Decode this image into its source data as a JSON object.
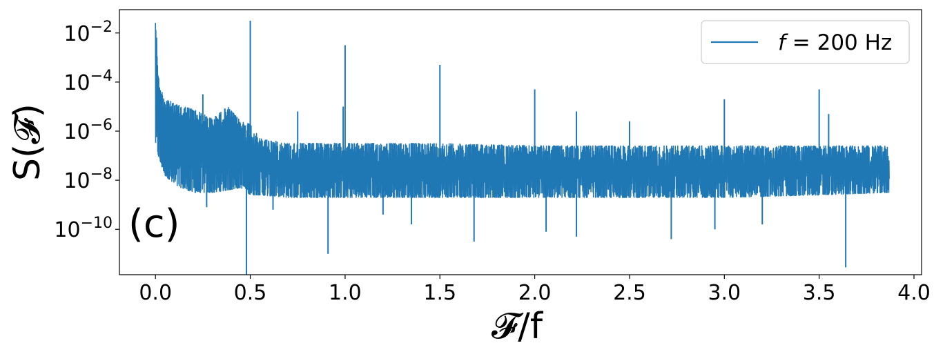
{
  "chart_data": {
    "type": "line",
    "panel_label": "(c)",
    "xlabel": "𝓕/f",
    "ylabel": "S(𝓕)",
    "xlim": [
      -0.19,
      4.04
    ],
    "ylim_log10": [
      -11.85,
      -1.05
    ],
    "y_scale": "log",
    "grid": false,
    "legend_position": "top-right",
    "x_ticks": [
      0.0,
      0.5,
      1.0,
      1.5,
      2.0,
      2.5,
      3.0,
      3.5,
      4.0
    ],
    "x_tick_labels": [
      "0.0",
      "0.5",
      "1.0",
      "1.5",
      "2.0",
      "2.5",
      "3.0",
      "3.5",
      "4.0"
    ],
    "y_ticks_log10": [
      -2,
      -4,
      -6,
      -8,
      -10
    ],
    "y_tick_labels": [
      {
        "base": "10",
        "exp": "−2"
      },
      {
        "base": "10",
        "exp": "−4"
      },
      {
        "base": "10",
        "exp": "−6"
      },
      {
        "base": "10",
        "exp": "−8"
      },
      {
        "base": "10",
        "exp": "−10"
      }
    ],
    "series": [
      {
        "name_italic": "f",
        "name_rest": " = 200 Hz",
        "color": "#1f77b4",
        "x_range": [
          0.0,
          3.87
        ],
        "envelope_log10": {
          "x": [
            0.0,
            0.02,
            0.05,
            0.1,
            0.2,
            0.3,
            0.38,
            0.45,
            0.5,
            0.55,
            0.7,
            1.0,
            1.5,
            2.0,
            2.5,
            3.0,
            3.5,
            3.87
          ],
          "upper": [
            -1.2,
            -4.2,
            -4.6,
            -4.9,
            -5.1,
            -5.5,
            -5.0,
            -5.6,
            -5.7,
            -6.3,
            -6.5,
            -6.5,
            -6.5,
            -6.6,
            -6.6,
            -6.6,
            -6.6,
            -6.6
          ],
          "lower": [
            -6.5,
            -7.2,
            -7.8,
            -8.2,
            -8.5,
            -8.5,
            -8.4,
            -8.3,
            -8.6,
            -8.6,
            -8.7,
            -8.7,
            -8.7,
            -8.7,
            -8.7,
            -8.7,
            -8.6,
            -8.5
          ]
        },
        "peaks": [
          {
            "x": 0.5,
            "y_log10": -1.5
          },
          {
            "x": 1.0,
            "y_log10": -2.5
          },
          {
            "x": 1.5,
            "y_log10": -3.3
          },
          {
            "x": 2.0,
            "y_log10": -4.3
          },
          {
            "x": 2.5,
            "y_log10": -5.6
          },
          {
            "x": 3.0,
            "y_log10": -4.7
          },
          {
            "x": 3.5,
            "y_log10": -4.3
          },
          {
            "x": 0.25,
            "y_log10": -4.5
          },
          {
            "x": 0.75,
            "y_log10": -5.2
          },
          {
            "x": 0.99,
            "y_log10": -5.0
          },
          {
            "x": 2.22,
            "y_log10": -5.2
          },
          {
            "x": 3.55,
            "y_log10": -5.3
          }
        ],
        "dips": [
          {
            "x": 0.48,
            "y_log10": -11.85
          },
          {
            "x": 0.27,
            "y_log10": -9.1
          },
          {
            "x": 0.91,
            "y_log10": -11.0
          },
          {
            "x": 1.68,
            "y_log10": -10.5
          },
          {
            "x": 2.06,
            "y_log10": -10.1
          },
          {
            "x": 2.22,
            "y_log10": -10.3
          },
          {
            "x": 2.72,
            "y_log10": -10.4
          },
          {
            "x": 3.64,
            "y_log10": -11.55
          },
          {
            "x": 1.35,
            "y_log10": -9.8
          },
          {
            "x": 2.95,
            "y_log10": -10.0
          },
          {
            "x": 3.2,
            "y_log10": -9.8
          },
          {
            "x": 0.62,
            "y_log10": -9.2
          },
          {
            "x": 1.2,
            "y_log10": -9.4
          }
        ]
      }
    ]
  }
}
